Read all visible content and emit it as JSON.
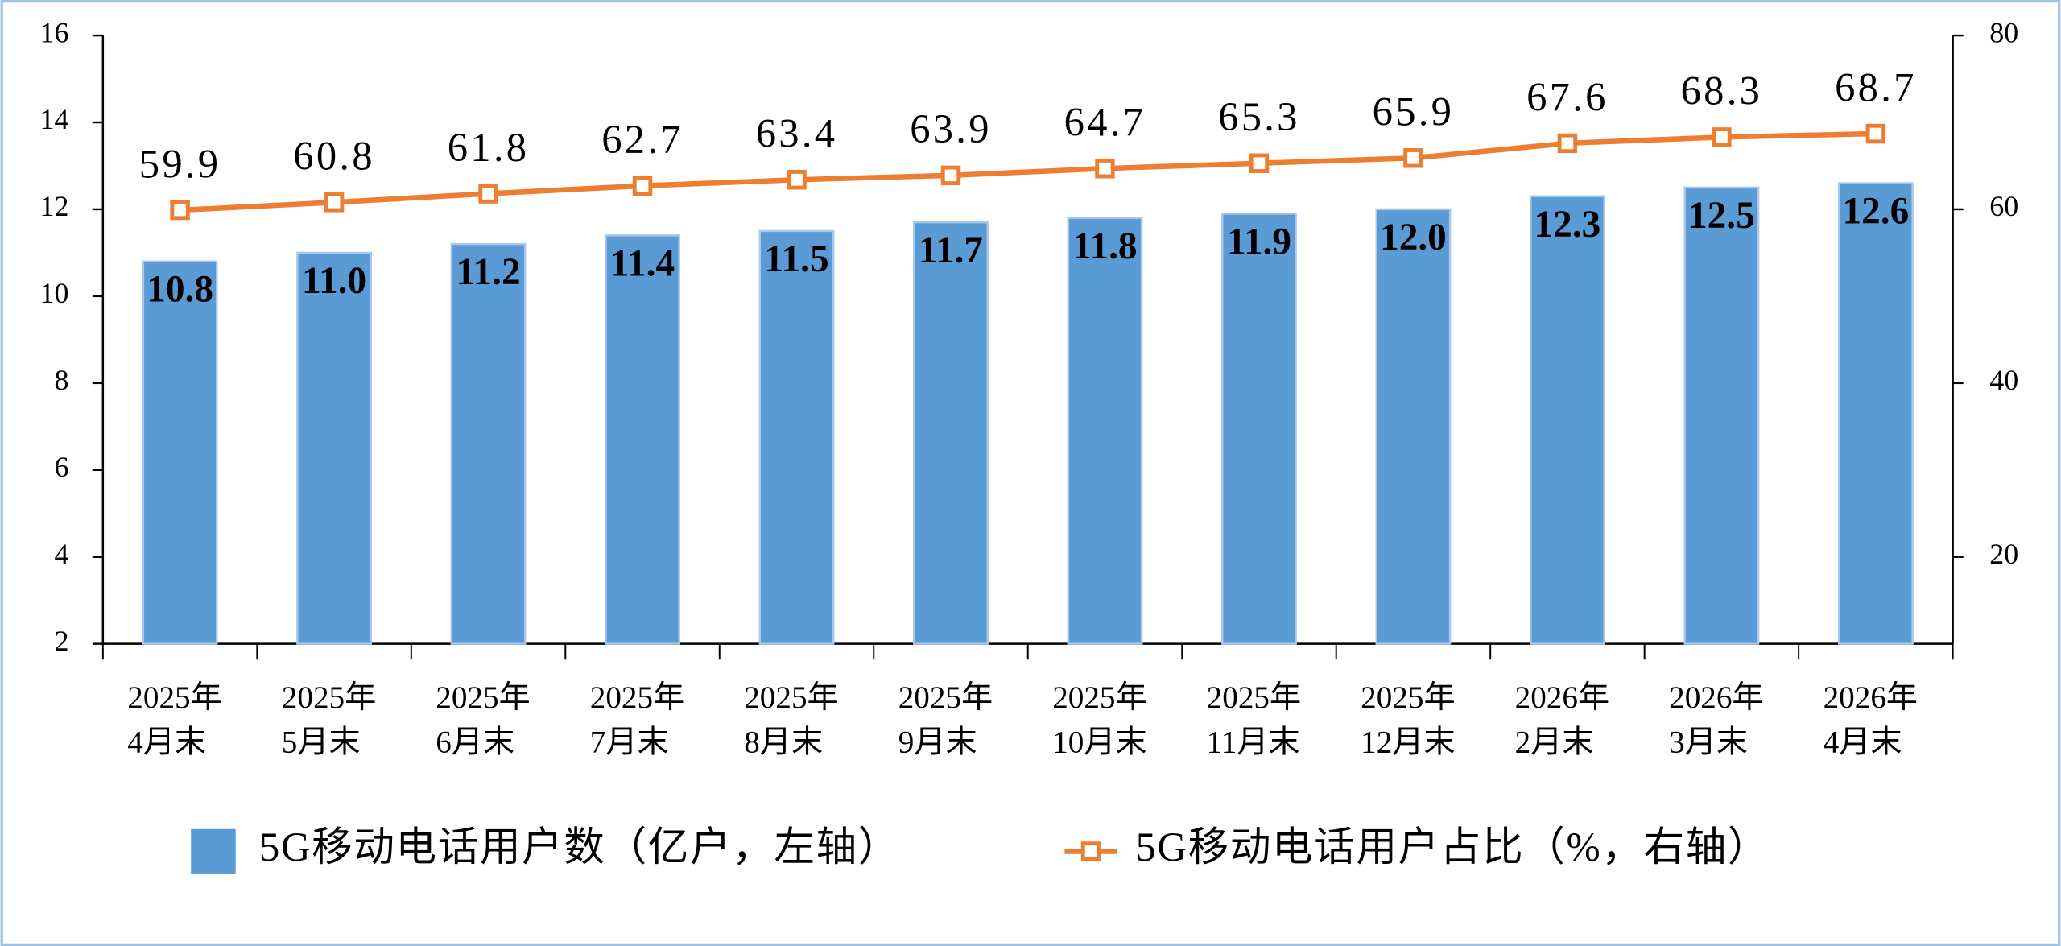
{
  "chart_data": {
    "type": "bar",
    "categories": [
      [
        "2025年",
        "4月末"
      ],
      [
        "2025年",
        "5月末"
      ],
      [
        "2025年",
        "6月末"
      ],
      [
        "2025年",
        "7月末"
      ],
      [
        "2025年",
        "8月末"
      ],
      [
        "2025年",
        "9月末"
      ],
      [
        "2025年",
        "10月末"
      ],
      [
        "2025年",
        "11月末"
      ],
      [
        "2025年",
        "12月末"
      ],
      [
        "2026年",
        "2月末"
      ],
      [
        "2026年",
        "3月末"
      ],
      [
        "2026年",
        "4月末"
      ]
    ],
    "series": [
      {
        "name": "5G移动电话用户数（亿户，左轴）",
        "type": "bar",
        "color": "#5b9bd5",
        "values": [
          10.8,
          11.0,
          11.2,
          11.4,
          11.5,
          11.7,
          11.8,
          11.9,
          12.0,
          12.3,
          12.5,
          12.6
        ],
        "value_labels": [
          "10.8",
          "11.0",
          "11.2",
          "11.4",
          "11.5",
          "11.7",
          "11.8",
          "11.9",
          "12.0",
          "12.3",
          "12.5",
          "12.6"
        ]
      },
      {
        "name": "5G移动电话用户占比（%，右轴）",
        "type": "line",
        "axis": "y2",
        "color": "#ed7d31",
        "values": [
          59.9,
          60.8,
          61.8,
          62.7,
          63.4,
          63.9,
          64.7,
          65.3,
          65.9,
          67.6,
          68.3,
          68.7
        ]
      }
    ],
    "ylim": [
      2,
      16
    ],
    "yticks": [
      2,
      4,
      6,
      8,
      10,
      12,
      14,
      16
    ],
    "y2lim": [
      10,
      80
    ],
    "y2ticks": [
      20,
      40,
      60,
      80
    ],
    "legend": "bottom"
  }
}
